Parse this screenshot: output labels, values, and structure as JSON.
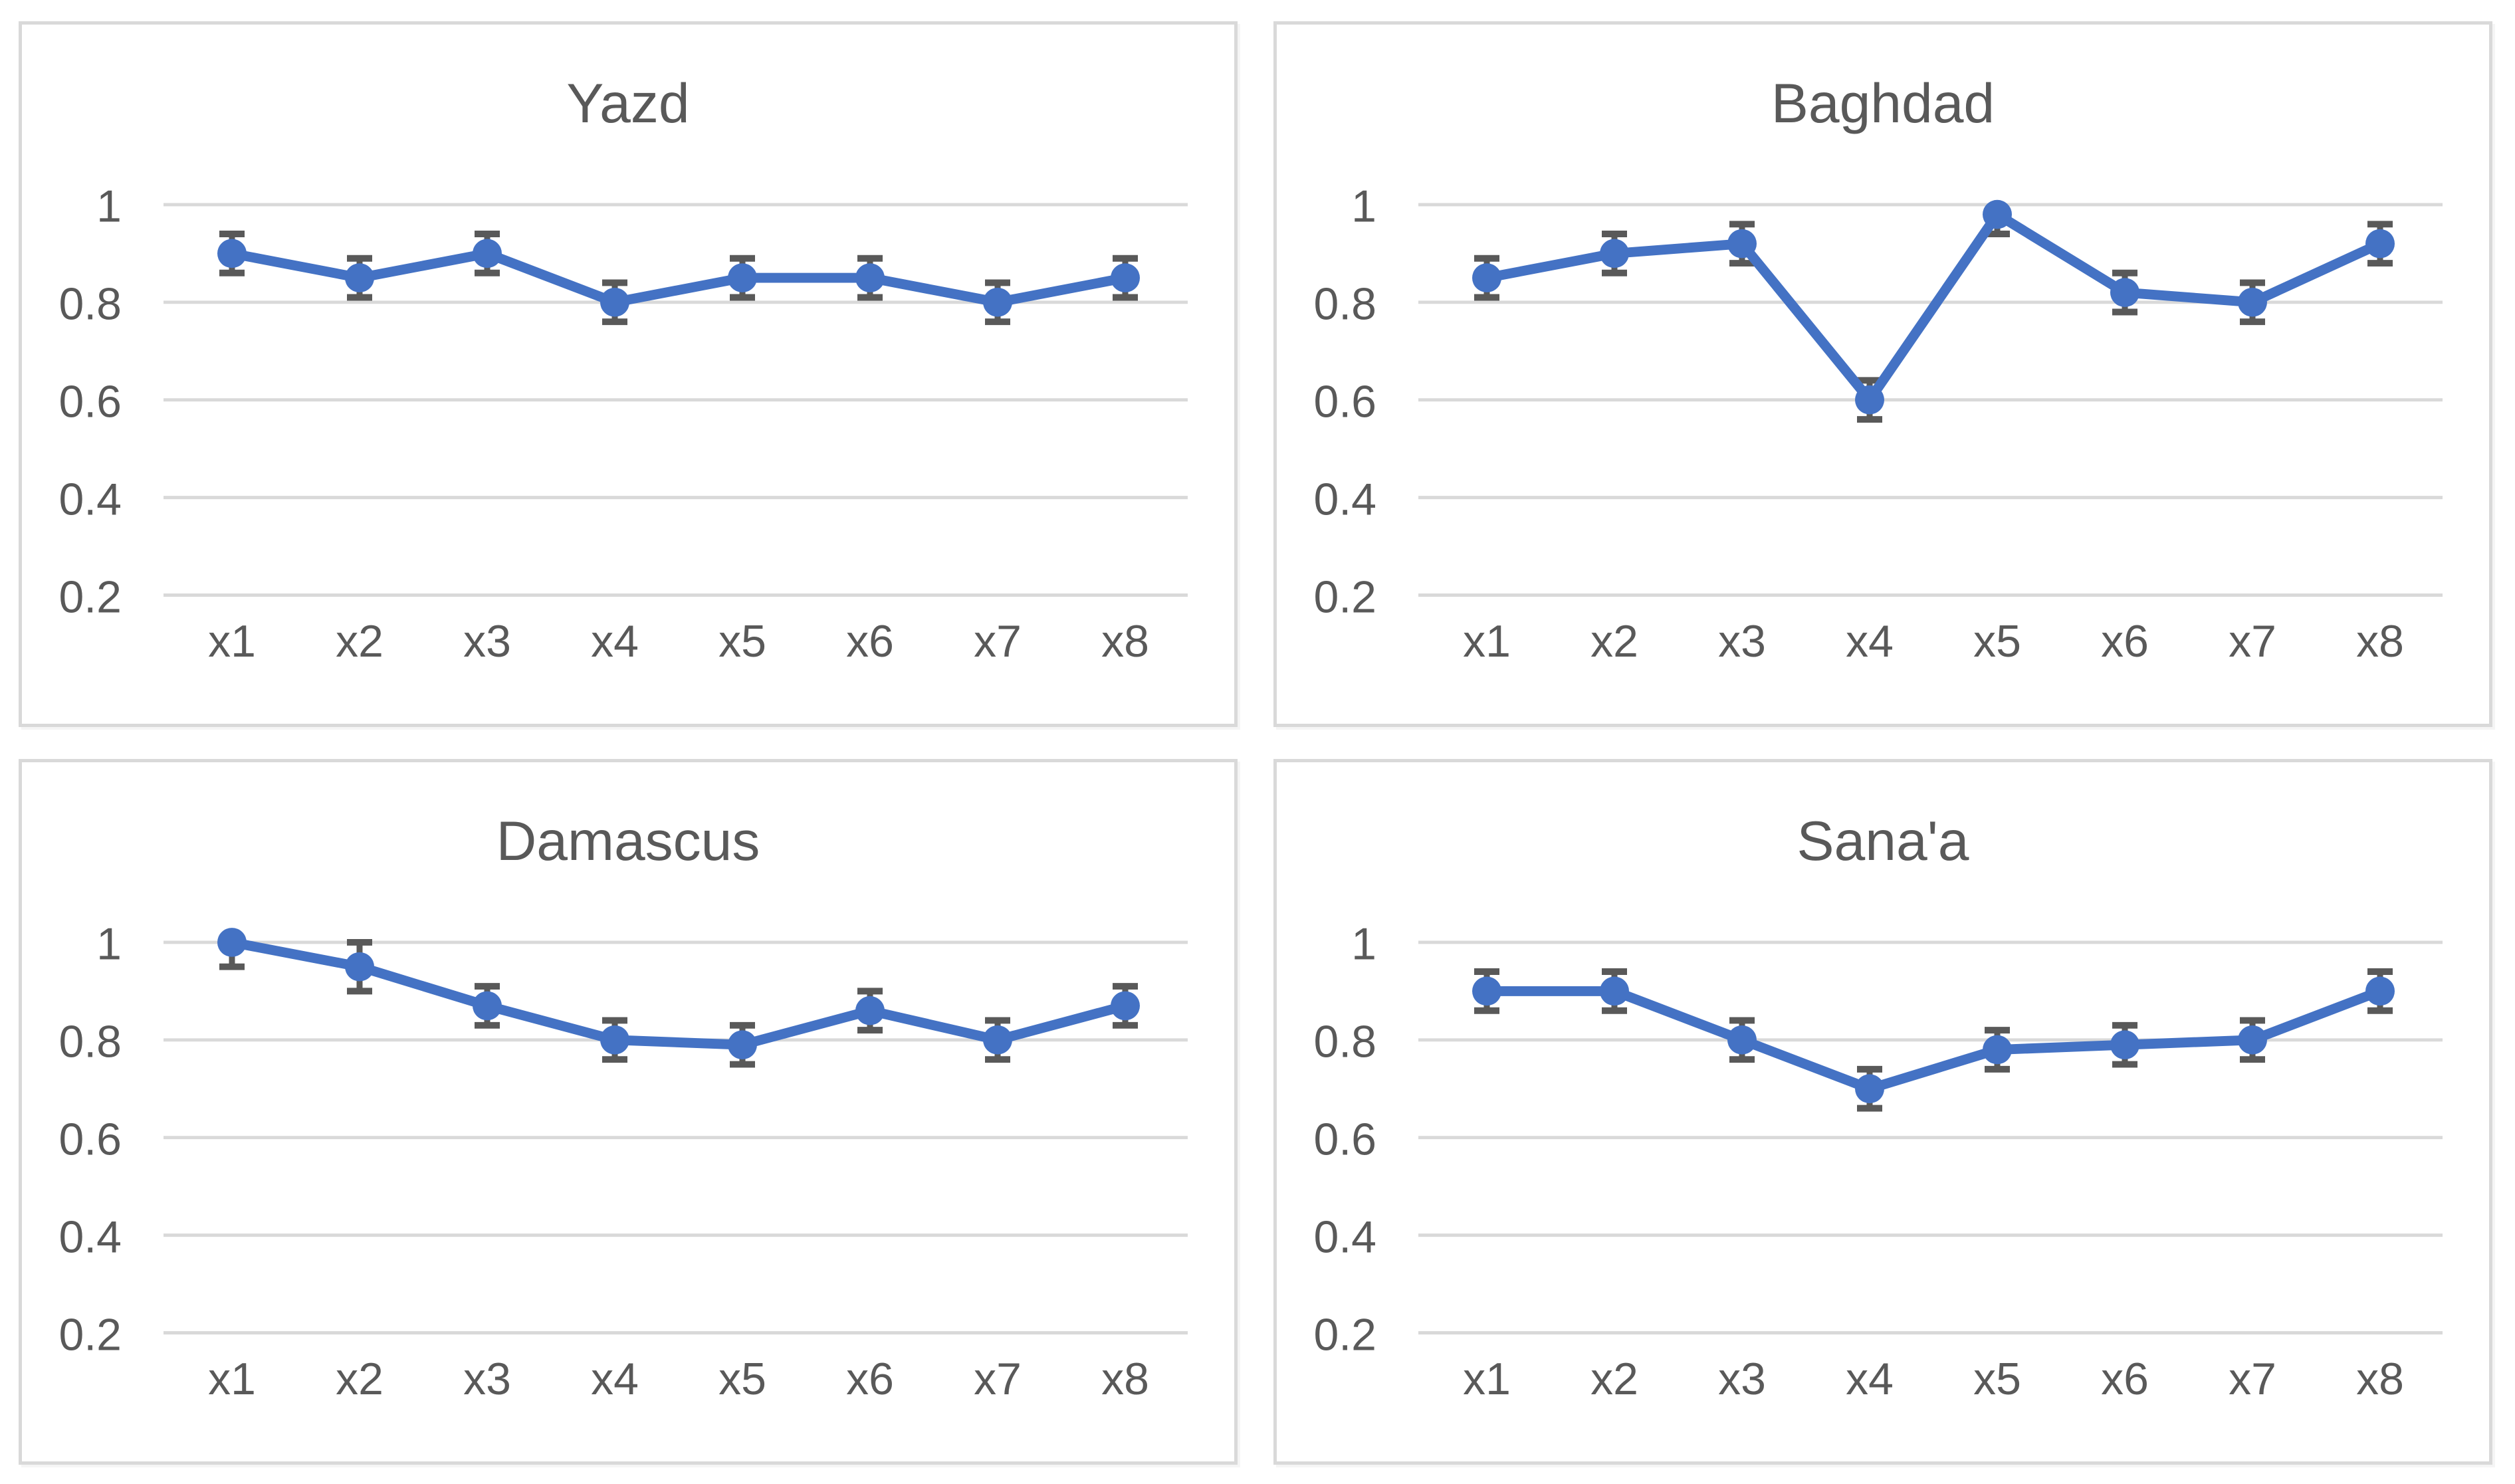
{
  "page": {
    "background": "#FFFFFF",
    "description": "Four line charts with error bars arranged in a 2x2 grid"
  },
  "colors": {
    "series": "#4472C4",
    "error_bar": "#595959",
    "gridline": "#D9D9D9",
    "panel_border": "#D9D9D9",
    "text": "#595959",
    "background": "#FFFFFF"
  },
  "chart_data": [
    {
      "type": "line",
      "title": "Yazd",
      "categories": [
        "x1",
        "x2",
        "x3",
        "x4",
        "x5",
        "x6",
        "x7",
        "x8"
      ],
      "values": [
        0.9,
        0.85,
        0.9,
        0.8,
        0.85,
        0.85,
        0.8,
        0.85
      ],
      "error_plus": [
        0.04,
        0.04,
        0.04,
        0.04,
        0.04,
        0.04,
        0.04,
        0.04
      ],
      "error_minus": [
        0.04,
        0.04,
        0.04,
        0.04,
        0.04,
        0.04,
        0.04,
        0.04
      ],
      "xlabel": "",
      "ylabel": "",
      "y_ticks": [
        1,
        0.8,
        0.6,
        0.4,
        0.2
      ],
      "y_tick_labels": [
        "1",
        "0.8",
        "0.6",
        "0.4",
        "0.2"
      ],
      "ylim": [
        0.1,
        1.05
      ],
      "grid": true,
      "legend": false
    },
    {
      "type": "line",
      "title": "Baghdad",
      "categories": [
        "x1",
        "x2",
        "x3",
        "x4",
        "x5",
        "x6",
        "x7",
        "x8"
      ],
      "values": [
        0.85,
        0.9,
        0.92,
        0.6,
        0.98,
        0.82,
        0.8,
        0.92
      ],
      "error_plus": [
        0.04,
        0.04,
        0.04,
        0.04,
        0,
        0.04,
        0.04,
        0.04
      ],
      "error_minus": [
        0.04,
        0.04,
        0.04,
        0.04,
        0.04,
        0.04,
        0.04,
        0.04
      ],
      "xlabel": "",
      "ylabel": "",
      "y_ticks": [
        1,
        0.8,
        0.6,
        0.4,
        0.2
      ],
      "y_tick_labels": [
        "1",
        "0.8",
        "0.6",
        "0.4",
        "0.2"
      ],
      "ylim": [
        0.1,
        1.05
      ],
      "grid": true,
      "legend": false
    },
    {
      "type": "line",
      "title": "Damascus",
      "categories": [
        "x1",
        "x2",
        "x3",
        "x4",
        "x5",
        "x6",
        "x7",
        "x8"
      ],
      "values": [
        1.0,
        0.95,
        0.87,
        0.8,
        0.79,
        0.86,
        0.8,
        0.87
      ],
      "error_plus": [
        0,
        0.05,
        0.04,
        0.04,
        0.04,
        0.04,
        0.04,
        0.04
      ],
      "error_minus": [
        0.05,
        0.05,
        0.04,
        0.04,
        0.04,
        0.04,
        0.04,
        0.04
      ],
      "xlabel": "",
      "ylabel": "",
      "y_ticks": [
        1,
        0.8,
        0.6,
        0.4,
        0.2
      ],
      "y_tick_labels": [
        "1",
        "0.8",
        "0.6",
        "0.4",
        "0.2"
      ],
      "ylim": [
        0.1,
        1.05
      ],
      "grid": true,
      "legend": false
    },
    {
      "type": "line",
      "title": "Sana'a",
      "categories": [
        "x1",
        "x2",
        "x3",
        "x4",
        "x5",
        "x6",
        "x7",
        "x8"
      ],
      "values": [
        0.9,
        0.9,
        0.8,
        0.7,
        0.78,
        0.79,
        0.8,
        0.9
      ],
      "error_plus": [
        0.04,
        0.04,
        0.04,
        0.04,
        0.04,
        0.04,
        0.04,
        0.04
      ],
      "error_minus": [
        0.04,
        0.04,
        0.04,
        0.04,
        0.04,
        0.04,
        0.04,
        0.04
      ],
      "xlabel": "",
      "ylabel": "",
      "y_ticks": [
        1,
        0.8,
        0.6,
        0.4,
        0.2
      ],
      "y_tick_labels": [
        "1",
        "0.8",
        "0.6",
        "0.4",
        "0.2"
      ],
      "ylim": [
        0.1,
        1.05
      ],
      "grid": true,
      "legend": false
    }
  ]
}
